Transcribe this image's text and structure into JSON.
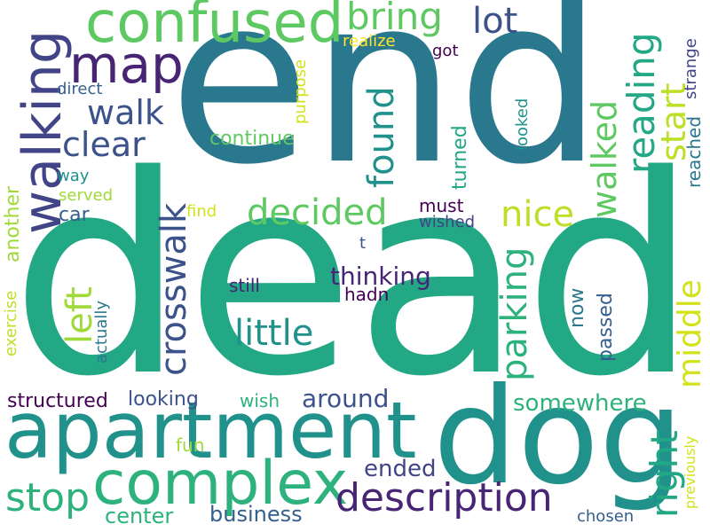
{
  "words": {
    "end": "end",
    "dead": "dead",
    "dog": "dog",
    "apartment": "apartment",
    "complex": "complex",
    "confused": "confused",
    "map": "map",
    "walking": "walking",
    "bring": "bring",
    "lot": "lot",
    "walk": "walk",
    "clear": "clear",
    "decided": "decided",
    "found": "found",
    "nice": "nice",
    "walked": "walked",
    "reading": "reading",
    "start": "start",
    "crosswalk": "crosswalk",
    "left": "left",
    "little": "little",
    "parking": "parking",
    "right": "right",
    "middle": "middle",
    "description": "description",
    "stop": "stop",
    "around": "around",
    "thinking": "thinking",
    "somewhere": "somewhere",
    "ended": "ended",
    "business": "business",
    "center": "center",
    "structured": "structured",
    "looking": "looking",
    "wish": "wish",
    "fun": "fun",
    "continue": "continue",
    "realize": "realize",
    "got": "got",
    "direct": "direct",
    "purpose": "purpose",
    "turned": "turned",
    "looked": "looked",
    "reached": "reached",
    "strange": "strange",
    "way": "way",
    "served": "served",
    "car": "car",
    "find": "find",
    "must": "must",
    "wished": "wished",
    "t": "t",
    "still": "still",
    "hadn": "hadn",
    "now": "now",
    "passed": "passed",
    "another": "another",
    "exercise": "exercise",
    "actually": "actually",
    "previously": "previously",
    "chosen": "chosen"
  }
}
